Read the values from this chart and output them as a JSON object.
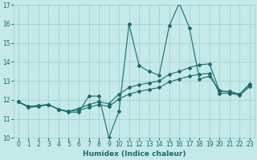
{
  "xlabel": "Humidex (Indice chaleur)",
  "xlim": [
    -0.5,
    23.5
  ],
  "ylim": [
    10,
    17
  ],
  "yticks": [
    10,
    11,
    12,
    13,
    14,
    15,
    16,
    17
  ],
  "xticks": [
    0,
    1,
    2,
    3,
    4,
    5,
    6,
    7,
    8,
    9,
    10,
    11,
    12,
    13,
    14,
    15,
    16,
    17,
    18,
    19,
    20,
    21,
    22,
    23
  ],
  "bg_color": "#c5e8e8",
  "grid_color": "#9ecece",
  "line_color": "#1a6b6b",
  "line1_x": [
    0,
    1,
    2,
    3,
    4,
    5,
    6,
    7,
    8,
    9,
    10,
    11,
    12,
    13,
    14,
    15,
    16,
    17,
    18,
    19,
    20,
    21,
    22,
    23
  ],
  "line1_y": [
    11.9,
    11.6,
    11.65,
    11.75,
    11.5,
    11.35,
    11.35,
    12.2,
    12.2,
    10.0,
    11.4,
    16.0,
    13.8,
    13.5,
    13.3,
    15.9,
    17.1,
    15.8,
    13.1,
    13.25,
    12.5,
    12.4,
    12.3,
    12.8
  ],
  "line2_x": [
    0,
    1,
    2,
    3,
    4,
    5,
    6,
    7,
    8,
    9,
    10,
    11,
    12,
    13,
    14,
    15,
    16,
    17,
    18,
    19,
    20,
    21,
    22,
    23
  ],
  "line2_y": [
    11.9,
    11.65,
    11.7,
    11.75,
    11.5,
    11.4,
    11.55,
    11.75,
    11.9,
    11.8,
    12.3,
    12.65,
    12.8,
    12.9,
    13.0,
    13.35,
    13.5,
    13.7,
    13.85,
    13.9,
    12.45,
    12.45,
    12.3,
    12.85
  ],
  "line3_x": [
    0,
    1,
    2,
    3,
    4,
    5,
    6,
    7,
    8,
    9,
    10,
    11,
    12,
    13,
    14,
    15,
    16,
    17,
    18,
    19,
    20,
    21,
    22,
    23
  ],
  "line3_y": [
    11.9,
    11.65,
    11.7,
    11.75,
    11.5,
    11.4,
    11.45,
    11.6,
    11.75,
    11.65,
    12.05,
    12.3,
    12.45,
    12.55,
    12.65,
    12.95,
    13.1,
    13.25,
    13.35,
    13.4,
    12.35,
    12.35,
    12.25,
    12.7
  ]
}
